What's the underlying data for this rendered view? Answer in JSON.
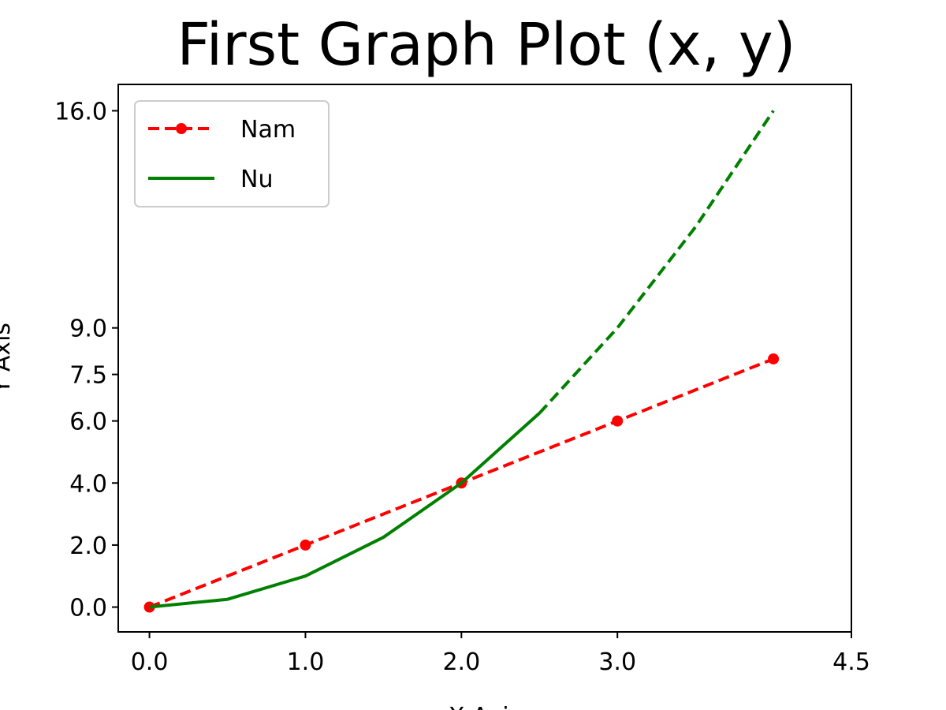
{
  "chart_data": {
    "type": "line",
    "title": "First Graph Plot (x, y)",
    "xlabel": "X Axis",
    "ylabel": "Y Axis",
    "xlim": [
      -0.2,
      4.5
    ],
    "ylim": [
      -0.8,
      16.85
    ],
    "x_ticks": [
      {
        "value": 0.0,
        "label": "0.0"
      },
      {
        "value": 1.0,
        "label": "1.0"
      },
      {
        "value": 2.0,
        "label": "2.0"
      },
      {
        "value": 3.0,
        "label": "3.0"
      },
      {
        "value": 4.5,
        "label": "4.5"
      }
    ],
    "y_ticks": [
      {
        "value": 0.0,
        "label": "0.0"
      },
      {
        "value": 2.0,
        "label": "2.0"
      },
      {
        "value": 4.0,
        "label": "4.0"
      },
      {
        "value": 6.0,
        "label": "6.0"
      },
      {
        "value": 7.5,
        "label": "7.5"
      },
      {
        "value": 9.0,
        "label": "9.0"
      },
      {
        "value": 16.0,
        "label": "16.0"
      }
    ],
    "grid": false,
    "legend_position": "upper-left",
    "series": [
      {
        "name": "Nam",
        "color": "#ff0000",
        "style": "dashed",
        "marker": "circle",
        "x": [
          0,
          1,
          2,
          3,
          4
        ],
        "y": [
          0,
          2,
          4,
          6,
          8
        ]
      },
      {
        "name": "Nu",
        "color": "#008000",
        "style": "solid",
        "marker": "none",
        "x": [
          0,
          0.5,
          1,
          1.5,
          2,
          2.5
        ],
        "y": [
          0,
          0.25,
          1,
          2.25,
          4,
          6.25
        ]
      },
      {
        "name": "",
        "color": "#008000",
        "style": "dashed",
        "marker": "none",
        "x": [
          2.5,
          3,
          3.5,
          4
        ],
        "y": [
          6.25,
          9,
          12.25,
          16
        ]
      }
    ]
  }
}
